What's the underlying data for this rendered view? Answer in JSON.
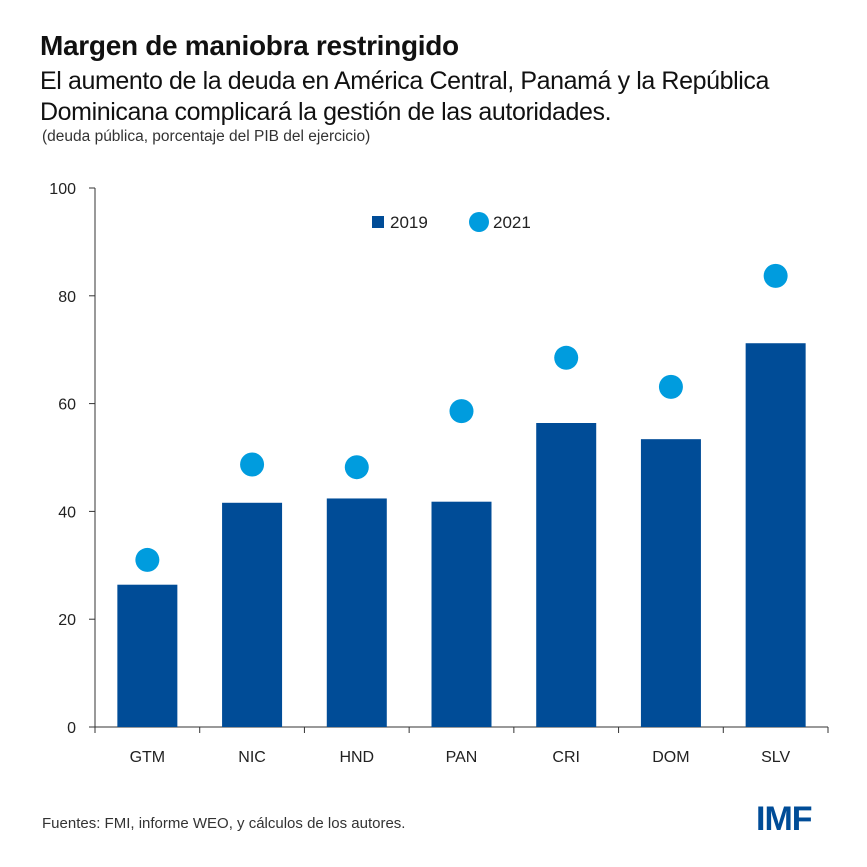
{
  "header": {
    "title": "Margen de maniobra restringido",
    "subtitle": "El aumento de la deuda en América Central, Panamá y la República Dominicana complicará la gestión de las autoridades.",
    "note": "(deuda pública, porcentaje del PIB del ejercicio)"
  },
  "footer": {
    "source": "Fuentes: FMI, informe WEO, y cálculos de los autores.",
    "logo": "IMF"
  },
  "colors": {
    "bar_2019": "#004c97",
    "dot_2021": "#009cde",
    "logo": "#004c97",
    "axis": "#333333"
  },
  "chart_data": {
    "type": "bar",
    "categories": [
      "GTM",
      "NIC",
      "HND",
      "PAN",
      "CRI",
      "DOM",
      "SLV"
    ],
    "series": [
      {
        "name": "2019",
        "mark": "bar",
        "values": [
          26.4,
          41.6,
          42.4,
          41.8,
          56.4,
          53.4,
          71.2
        ]
      },
      {
        "name": "2021",
        "mark": "dot",
        "values": [
          31.0,
          48.7,
          48.2,
          58.6,
          68.5,
          63.1,
          83.7
        ]
      }
    ],
    "ylim": [
      0,
      100
    ],
    "yticks": [
      "0",
      "20",
      "40",
      "60",
      "80",
      "100"
    ],
    "legend": "top-center",
    "grid": false
  }
}
